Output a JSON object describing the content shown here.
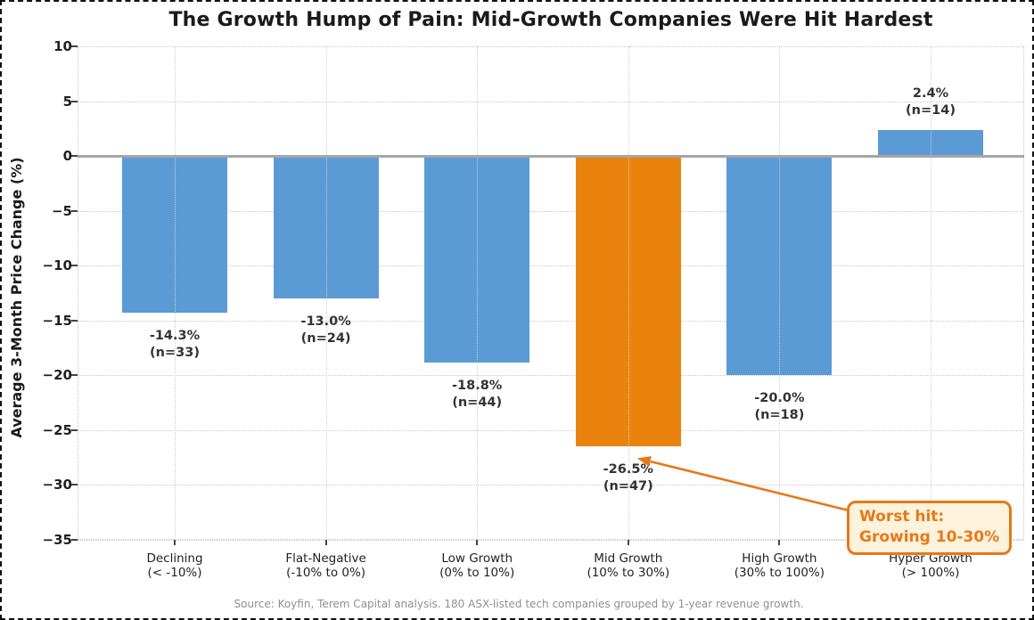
{
  "chart_data": {
    "type": "bar",
    "title": "The Growth Hump of Pain: Mid-Growth Companies Were Hit Hardest",
    "ylabel": "Average 3-Month Price Change (%)",
    "xlabel": "",
    "ylim": [
      -35,
      10
    ],
    "yticks": [
      10,
      5,
      0,
      -5,
      -10,
      -15,
      -20,
      -25,
      -30,
      -35
    ],
    "ytick_labels": [
      "10",
      "5",
      "0",
      "−5",
      "−10",
      "−15",
      "−20",
      "−25",
      "−30",
      "−35"
    ],
    "grid": true,
    "categories": [
      {
        "label": "Declining",
        "range": "(< -10%)",
        "value": -14.3,
        "n": 33,
        "value_label": "-14.3%",
        "n_label": "(n=33)",
        "highlight": false
      },
      {
        "label": "Flat-Negative",
        "range": "(-10% to 0%)",
        "value": -13.0,
        "n": 24,
        "value_label": "-13.0%",
        "n_label": "(n=24)",
        "highlight": false
      },
      {
        "label": "Low Growth",
        "range": "(0% to 10%)",
        "value": -18.8,
        "n": 44,
        "value_label": "-18.8%",
        "n_label": "(n=44)",
        "highlight": false
      },
      {
        "label": "Mid Growth",
        "range": "(10% to 30%)",
        "value": -26.5,
        "n": 47,
        "value_label": "-26.5%",
        "n_label": "(n=47)",
        "highlight": true
      },
      {
        "label": "High Growth",
        "range": "(30% to 100%)",
        "value": -20.0,
        "n": 18,
        "value_label": "-20.0%",
        "n_label": "(n=18)",
        "highlight": false
      },
      {
        "label": "Hyper Growth",
        "range": "(> 100%)",
        "value": 2.4,
        "n": 14,
        "value_label": "2.4%",
        "n_label": "(n=14)",
        "highlight": false
      }
    ],
    "colors": {
      "bar_default": "#5B9BD5",
      "bar_highlight": "#EA830E",
      "annotation": "#E87817",
      "annotation_bg": "#FDF2DC",
      "zero_line": "#A6A6A6",
      "grid": "#C9C9C9"
    },
    "annotation": {
      "lines": [
        "Worst hit:",
        "Growing 10-30%"
      ],
      "target_category": "Mid Growth"
    },
    "legend": null,
    "source_note": "Source: Koyfin, Terem Capital analysis. 180 ASX-listed tech companies grouped by 1-year revenue growth."
  }
}
